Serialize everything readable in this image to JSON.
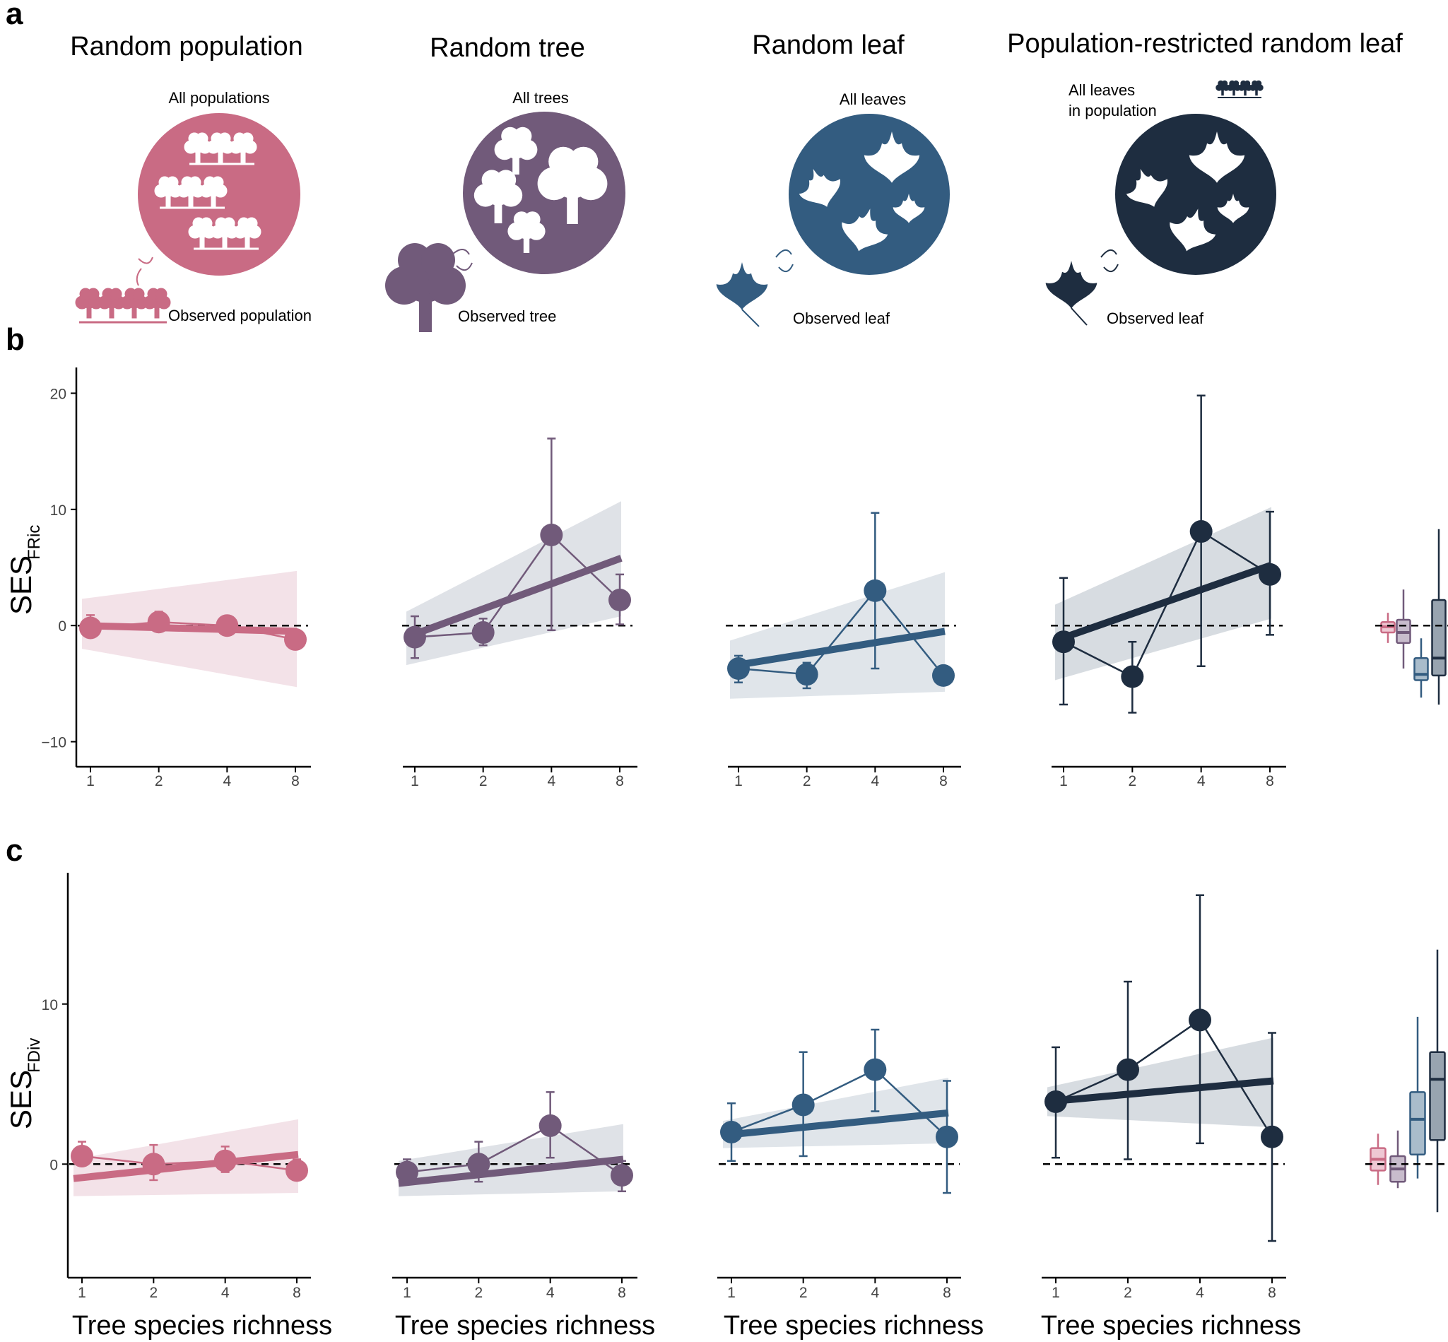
{
  "panel_labels": {
    "a": "a",
    "b": "b",
    "c": "c"
  },
  "approaches": [
    {
      "title": "Random population",
      "pool_label": "All populations",
      "observed_label": "Observed population",
      "color": "#c96b84",
      "pool_icon": "population-icons",
      "observed_icon": "population-icon"
    },
    {
      "title": "Random tree",
      "pool_label": "All trees",
      "observed_label": "Observed tree",
      "color": "#715a7a",
      "pool_icon": "tree-icons",
      "observed_icon": "tree-icon"
    },
    {
      "title": "Random leaf",
      "pool_label": "All leaves",
      "observed_label": "Observed leaf",
      "color": "#335c80",
      "pool_icon": "leaf-icons",
      "observed_icon": "leaf-icon"
    },
    {
      "title": "Population-restricted random leaf",
      "pool_label_line1": "All leaves",
      "pool_label_line2": "in population",
      "observed_label": "Observed leaf",
      "color": "#1e2d40",
      "pool_icon": "leaf-icons",
      "observed_icon": "leaf-icon"
    }
  ],
  "xlabel": "Tree species richness",
  "chart_data": [
    {
      "type": "line",
      "panel": "b",
      "ylabel_main": "SES",
      "ylabel_sub": "FRic",
      "x_ticks": [
        "1",
        "2",
        "4",
        "8"
      ],
      "y_ticks": [
        "20",
        "10",
        "0",
        "−10"
      ],
      "ylim": [
        -11,
        21
      ],
      "reference_line": 0,
      "series": [
        {
          "x": [
            1,
            2,
            4,
            8
          ],
          "mean": [
            -0.2,
            0.3,
            0.0,
            -1.2
          ],
          "lower": [
            -1.0,
            -0.5,
            -0.6,
            -1.2
          ],
          "upper": [
            0.9,
            1.2,
            0.6,
            -1.2
          ],
          "fit": [
            0.0,
            -0.5
          ],
          "band_lower": [
            -2.0,
            -5.3
          ],
          "band_upper": [
            2.3,
            4.7
          ]
        },
        {
          "x": [
            1,
            2,
            4,
            8
          ],
          "mean": [
            -1.0,
            -0.6,
            7.8,
            2.2
          ],
          "lower": [
            -2.8,
            -1.7,
            -0.4,
            0.1
          ],
          "upper": [
            0.8,
            0.6,
            16.1,
            4.4
          ],
          "fit": [
            -1.0,
            5.8
          ],
          "band_lower": [
            -3.4,
            0.8
          ],
          "band_upper": [
            1.2,
            10.7
          ]
        },
        {
          "x": [
            1,
            2,
            4,
            8
          ],
          "mean": [
            -3.7,
            -4.2,
            3.0,
            -4.3
          ],
          "lower": [
            -4.9,
            -5.4,
            -3.7,
            -4.3
          ],
          "upper": [
            -2.6,
            -3.2,
            9.7,
            -4.3
          ],
          "fit": [
            -3.5,
            -0.5
          ],
          "band_lower": [
            -6.3,
            -5.7
          ],
          "band_upper": [
            -1.3,
            4.6
          ]
        },
        {
          "x": [
            1,
            2,
            4,
            8
          ],
          "mean": [
            -1.4,
            -4.4,
            8.1,
            4.4
          ],
          "lower": [
            -6.8,
            -7.5,
            -3.5,
            -0.8
          ],
          "upper": [
            4.1,
            -1.4,
            19.8,
            9.8
          ],
          "fit": [
            -1.3,
            5.2
          ],
          "band_lower": [
            -4.7,
            0.6
          ],
          "band_upper": [
            1.8,
            10.2
          ]
        }
      ],
      "inset_boxplots": [
        {
          "q1": -0.6,
          "median": -0.1,
          "q3": 0.3,
          "min": -1.5,
          "max": 1.1
        },
        {
          "q1": -1.5,
          "median": -0.6,
          "q3": 0.5,
          "min": -3.7,
          "max": 3.1
        },
        {
          "q1": -4.7,
          "median": -4.2,
          "q3": -2.8,
          "min": -6.2,
          "max": -1.1
        },
        {
          "q1": -4.3,
          "median": -2.8,
          "q3": 2.2,
          "min": -6.8,
          "max": 8.3
        }
      ]
    },
    {
      "type": "line",
      "panel": "c",
      "ylabel_main": "SES",
      "ylabel_sub": "FDiv",
      "x_ticks": [
        "1",
        "2",
        "4",
        "8"
      ],
      "y_ticks": [
        "10",
        "0"
      ],
      "ylim": [
        -6.3,
        18.2
      ],
      "reference_line": 0,
      "series": [
        {
          "x": [
            1,
            2,
            4,
            8
          ],
          "mean": [
            0.5,
            0.0,
            0.2,
            -0.4
          ],
          "lower": [
            0.0,
            -1.0,
            -0.5,
            -1.0
          ],
          "upper": [
            1.4,
            1.2,
            1.1,
            0.3
          ],
          "fit": [
            -0.9,
            0.6
          ],
          "band_lower": [
            -2.0,
            -1.8
          ],
          "band_upper": [
            0.3,
            2.8
          ]
        },
        {
          "x": [
            1,
            2,
            4,
            8
          ],
          "mean": [
            -0.5,
            0.0,
            2.4,
            -0.7
          ],
          "lower": [
            -1.2,
            -1.1,
            0.4,
            -1.7
          ],
          "upper": [
            0.3,
            1.4,
            4.5,
            0.2
          ],
          "fit": [
            -1.2,
            0.3
          ],
          "band_lower": [
            -2.0,
            -1.7
          ],
          "band_upper": [
            0.2,
            2.5
          ]
        },
        {
          "x": [
            1,
            2,
            4,
            8
          ],
          "mean": [
            2.0,
            3.7,
            5.9,
            1.7
          ],
          "lower": [
            0.2,
            0.5,
            3.3,
            -1.8
          ],
          "upper": [
            3.8,
            7.0,
            8.4,
            5.2
          ],
          "fit": [
            1.8,
            3.2
          ],
          "band_lower": [
            1.0,
            1.3
          ],
          "band_upper": [
            2.7,
            5.4
          ]
        },
        {
          "x": [
            1,
            2,
            4,
            8
          ],
          "mean": [
            3.9,
            5.9,
            9.0,
            1.7
          ],
          "lower": [
            0.4,
            0.3,
            1.3,
            -4.8
          ],
          "upper": [
            7.3,
            11.4,
            16.8,
            8.2
          ],
          "fit": [
            3.9,
            5.2
          ],
          "band_lower": [
            3.0,
            2.3
          ],
          "band_upper": [
            4.8,
            7.9
          ]
        }
      ],
      "inset_boxplots": [
        {
          "q1": -0.4,
          "median": 0.3,
          "q3": 1.0,
          "min": -1.3,
          "max": 1.9
        },
        {
          "q1": -1.1,
          "median": -0.3,
          "q3": 0.5,
          "min": -1.5,
          "max": 2.1
        },
        {
          "q1": 0.6,
          "median": 2.8,
          "q3": 4.5,
          "min": -0.9,
          "max": 9.2
        },
        {
          "q1": 1.5,
          "median": 5.3,
          "q3": 7.0,
          "min": -3.0,
          "max": 13.4
        }
      ]
    }
  ]
}
